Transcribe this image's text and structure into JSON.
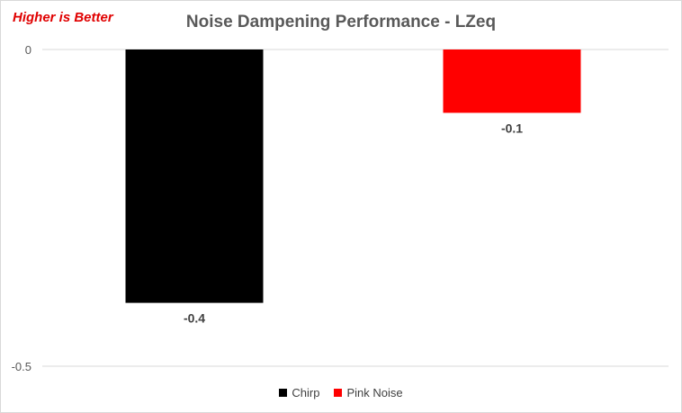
{
  "note": {
    "text": "Higher is Better",
    "color": "#e00000"
  },
  "chart_data": {
    "type": "bar",
    "title": "Noise Dampening Performance - LZeq",
    "xlabel": "",
    "ylabel": "",
    "ylim": [
      -0.5,
      0
    ],
    "yticks": [
      0,
      -0.5
    ],
    "ytick_labels": [
      "0",
      "-0.5"
    ],
    "grid": true,
    "legend_position": "bottom",
    "series": [
      {
        "name": "Chirp",
        "values": [
          -0.4
        ],
        "value_labels": [
          "-0.4"
        ],
        "color": "#000000"
      },
      {
        "name": "Pink Noise",
        "values": [
          -0.1
        ],
        "value_labels": [
          "-0.1"
        ],
        "color": "#ff0000"
      }
    ]
  }
}
